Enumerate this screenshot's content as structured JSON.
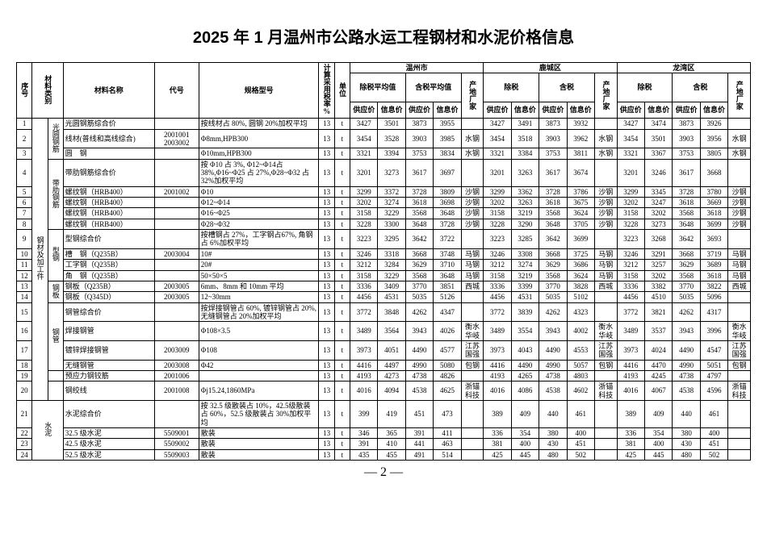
{
  "title": "2025 年 1 月温州市公路水运工程钢材和水泥价格信息",
  "title_fontsize": "20px",
  "body_fontsize": "9px",
  "page_number": "— 2 —",
  "headers": {
    "seq": "序号",
    "cat": "材料类别",
    "name": "材料名称",
    "code": "代号",
    "spec": "规格型号",
    "taxrate": "计算采用税率%",
    "unit": "单位",
    "region_wz": "温州市",
    "region_lc": "鹿城区",
    "region_lw": "龙湾区",
    "exclude_avg": "除税平均值",
    "include_avg": "含税平均值",
    "exclude": "除税",
    "include": "含税",
    "supply": "供应价",
    "info": "信息价",
    "src": "产地厂家"
  },
  "cat_steel": "钢材及加工件",
  "cat_cement": "水泥",
  "sub_guangyuan": "光圆钢筋",
  "sub_dailei": "带肋钢筋",
  "sub_xinggang": "型钢",
  "sub_gangban": "钢板",
  "sub_gangguan": "钢管",
  "rows": [
    {
      "n": "1",
      "name": "光圆钢筋综合价",
      "code": "",
      "spec": "按线材占 80%, 圆钢 20%加权平均",
      "tax": "13",
      "u": "t",
      "v": [
        "3427",
        "3501",
        "3873",
        "3955",
        "",
        "3427",
        "3491",
        "3873",
        "3932",
        "",
        "3427",
        "3474",
        "3873",
        "3926",
        ""
      ]
    },
    {
      "n": "2",
      "name": "线材(普线和高线综合)",
      "code": "2001001 2003002",
      "spec": "Φ8mm,HPB300",
      "tax": "13",
      "u": "t",
      "v": [
        "3454",
        "3528",
        "3903",
        "3985",
        "水钢",
        "3454",
        "3518",
        "3903",
        "3962",
        "水钢",
        "3454",
        "3501",
        "3903",
        "3956",
        "水钢"
      ]
    },
    {
      "n": "3",
      "name": "圆　钢",
      "code": "",
      "spec": "Φ10mm,HPB300",
      "tax": "13",
      "u": "t",
      "v": [
        "3321",
        "3394",
        "3753",
        "3834",
        "水钢",
        "3321",
        "3384",
        "3753",
        "3811",
        "水钢",
        "3321",
        "3367",
        "3753",
        "3805",
        "水钢"
      ]
    },
    {
      "n": "4",
      "name": "带肋钢筋综合价",
      "code": "",
      "spec": "按 Φ10 占 3%, Φ12~Φ14占 38%,Φ16~Φ25 占 27%,Φ28~Φ32 占 32%加权平均",
      "tax": "13",
      "u": "t",
      "v": [
        "3201",
        "3273",
        "3617",
        "3697",
        "",
        "3201",
        "3263",
        "3617",
        "3674",
        "",
        "3201",
        "3246",
        "3617",
        "3668",
        ""
      ]
    },
    {
      "n": "5",
      "name": "螺纹钢（HRB400）",
      "code": "2001002",
      "spec": "Φ10",
      "tax": "13",
      "u": "t",
      "v": [
        "3299",
        "3372",
        "3728",
        "3809",
        "沙钢",
        "3299",
        "3362",
        "3728",
        "3786",
        "沙钢",
        "3299",
        "3345",
        "3728",
        "3780",
        "沙钢"
      ]
    },
    {
      "n": "6",
      "name": "螺纹钢（HRB400）",
      "code": "",
      "spec": "Φ12~Φ14",
      "tax": "13",
      "u": "t",
      "v": [
        "3202",
        "3274",
        "3618",
        "3698",
        "沙钢",
        "3202",
        "3263",
        "3618",
        "3675",
        "沙钢",
        "3202",
        "3247",
        "3618",
        "3669",
        "沙钢"
      ]
    },
    {
      "n": "7",
      "name": "螺纹钢（HRB400）",
      "code": "",
      "spec": "Φ16~Φ25",
      "tax": "13",
      "u": "t",
      "v": [
        "3158",
        "3229",
        "3568",
        "3648",
        "沙钢",
        "3158",
        "3219",
        "3568",
        "3624",
        "沙钢",
        "3158",
        "3202",
        "3568",
        "3618",
        "沙钢"
      ]
    },
    {
      "n": "8",
      "name": "螺纹钢（HRB400）",
      "code": "",
      "spec": "Φ28~Φ32",
      "tax": "13",
      "u": "t",
      "v": [
        "3228",
        "3300",
        "3648",
        "3728",
        "沙钢",
        "3228",
        "3290",
        "3648",
        "3705",
        "沙钢",
        "3228",
        "3273",
        "3648",
        "3699",
        "沙钢"
      ]
    },
    {
      "n": "9",
      "name": "型钢综合价",
      "code": "",
      "spec": "按槽钢占 27%，工字钢占67%, 角钢占 6%加权平均",
      "tax": "13",
      "u": "t",
      "v": [
        "3223",
        "3295",
        "3642",
        "3722",
        "",
        "3223",
        "3285",
        "3642",
        "3699",
        "",
        "3223",
        "3268",
        "3642",
        "3693",
        ""
      ]
    },
    {
      "n": "10",
      "name": "槽　钢（Q235B）",
      "code": "2003004",
      "spec": "10#",
      "tax": "13",
      "u": "t",
      "v": [
        "3246",
        "3318",
        "3668",
        "3748",
        "马钢",
        "3246",
        "3308",
        "3668",
        "3725",
        "马钢",
        "3246",
        "3291",
        "3668",
        "3719",
        "马钢"
      ]
    },
    {
      "n": "11",
      "name": "工字钢（Q235B）",
      "code": "",
      "spec": "20#",
      "tax": "13",
      "u": "t",
      "v": [
        "3212",
        "3284",
        "3629",
        "3710",
        "马钢",
        "3212",
        "3274",
        "3629",
        "3686",
        "马钢",
        "3212",
        "3257",
        "3629",
        "3689",
        "马钢"
      ]
    },
    {
      "n": "12",
      "name": "角　钢（Q235B）",
      "code": "",
      "spec": "50×50×5",
      "tax": "13",
      "u": "t",
      "v": [
        "3158",
        "3229",
        "3568",
        "3648",
        "马钢",
        "3158",
        "3219",
        "3568",
        "3624",
        "马钢",
        "3158",
        "3202",
        "3568",
        "3618",
        "马钢"
      ]
    },
    {
      "n": "13",
      "name": "钢板（Q235B）",
      "code": "2003005",
      "spec": "6mm、8mm 和 10mm 平均",
      "tax": "13",
      "u": "t",
      "v": [
        "3336",
        "3409",
        "3770",
        "3851",
        "西城",
        "3336",
        "3399",
        "3770",
        "3828",
        "西城",
        "3336",
        "3382",
        "3770",
        "3822",
        "西城"
      ]
    },
    {
      "n": "14",
      "name": "钢板（Q345D）",
      "code": "2003005",
      "spec": "12~30mm",
      "tax": "13",
      "u": "t",
      "v": [
        "4456",
        "4531",
        "5035",
        "5126",
        "",
        "4456",
        "4531",
        "5035",
        "5102",
        "",
        "4456",
        "4510",
        "5035",
        "5096",
        ""
      ]
    },
    {
      "n": "15",
      "name": "钢管综合价",
      "code": "",
      "spec": "按焊接钢管占 60%, 镀锌钢管占 20%, 无缝钢管占 20%加权平均",
      "tax": "13",
      "u": "t",
      "v": [
        "3772",
        "3848",
        "4262",
        "4347",
        "",
        "3772",
        "3839",
        "4262",
        "4323",
        "",
        "3772",
        "3821",
        "4262",
        "4317",
        ""
      ]
    },
    {
      "n": "16",
      "name": "焊接钢管",
      "code": "",
      "spec": "Φ108×3.5",
      "tax": "13",
      "u": "t",
      "v": [
        "3489",
        "3564",
        "3943",
        "4026",
        "衡水华岐",
        "3489",
        "3554",
        "3943",
        "4002",
        "衡水华岐",
        "3489",
        "3537",
        "3943",
        "3996",
        "衡水华岐"
      ]
    },
    {
      "n": "17",
      "name": "镀锌焊接钢管",
      "code": "2003009",
      "spec": "Φ108",
      "tax": "13",
      "u": "t",
      "v": [
        "3973",
        "4051",
        "4490",
        "4577",
        "江苏国强",
        "3973",
        "4043",
        "4490",
        "4553",
        "江苏国强",
        "3973",
        "4024",
        "4490",
        "4547",
        "江苏国强"
      ]
    },
    {
      "n": "18",
      "name": "无缝钢管",
      "code": "2003008",
      "spec": "Φ42",
      "tax": "13",
      "u": "t",
      "v": [
        "4416",
        "4497",
        "4990",
        "5080",
        "包钢",
        "4416",
        "4490",
        "4990",
        "5057",
        "包钢",
        "4416",
        "4470",
        "4990",
        "5051",
        "包钢"
      ]
    },
    {
      "n": "19",
      "name": "预应力钢铰筋",
      "code": "2001006",
      "spec": "",
      "tax": "13",
      "u": "t",
      "v": [
        "4193",
        "4273",
        "4738",
        "4826",
        "",
        "4193",
        "4265",
        "4738",
        "4803",
        "",
        "4193",
        "4245",
        "4738",
        "4797",
        ""
      ]
    },
    {
      "n": "20",
      "name": "钢绞线",
      "code": "2001008",
      "spec": "Φj15.24,1860MPa",
      "tax": "13",
      "u": "t",
      "v": [
        "4016",
        "4094",
        "4538",
        "4625",
        "浙锚科技",
        "4016",
        "4086",
        "4538",
        "4602",
        "浙锚科技",
        "4016",
        "4067",
        "4538",
        "4596",
        "浙锚科技"
      ]
    },
    {
      "n": "21",
      "name": "水泥综合价",
      "code": "",
      "spec": "按 32.5 级散装占 10%，42.5级散装占 60%，52.5 级散装占 30%加权平均",
      "tax": "13",
      "u": "t",
      "v": [
        "399",
        "419",
        "451",
        "473",
        "",
        "389",
        "409",
        "440",
        "461",
        "",
        "389",
        "409",
        "440",
        "461",
        ""
      ]
    },
    {
      "n": "22",
      "name": "32.5 级水泥",
      "code": "5509001",
      "spec": "散装",
      "tax": "13",
      "u": "t",
      "v": [
        "346",
        "365",
        "391",
        "411",
        "",
        "336",
        "354",
        "380",
        "400",
        "",
        "336",
        "354",
        "380",
        "400",
        ""
      ]
    },
    {
      "n": "23",
      "name": "42.5 级水泥",
      "code": "5509002",
      "spec": "散装",
      "tax": "13",
      "u": "t",
      "v": [
        "391",
        "410",
        "441",
        "463",
        "",
        "381",
        "400",
        "430",
        "451",
        "",
        "381",
        "400",
        "430",
        "451",
        ""
      ]
    },
    {
      "n": "24",
      "name": "52.5 级水泥",
      "code": "5509003",
      "spec": "散装",
      "tax": "13",
      "u": "t",
      "v": [
        "435",
        "455",
        "491",
        "514",
        "",
        "425",
        "445",
        "480",
        "502",
        "",
        "425",
        "445",
        "480",
        "502",
        ""
      ]
    }
  ]
}
